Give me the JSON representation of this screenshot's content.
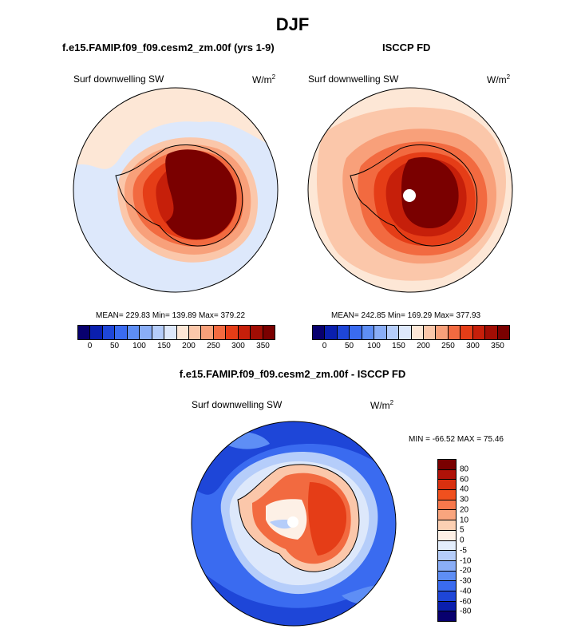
{
  "title": "DJF",
  "panels": [
    {
      "title": "f.e15.FAMIP.f09_f09.cesm2_zm.00f (yrs 1-9)",
      "variable": "Surf downwelling SW",
      "units": "W/m",
      "units_sup": "2",
      "stats": "MEAN= 229.83  Min= 139.89  Max= 379.22"
    },
    {
      "title": "ISCCP FD",
      "variable": "Surf downwelling SW",
      "units": "W/m",
      "units_sup": "2",
      "stats": "MEAN= 242.85  Min= 169.29  Max= 377.93"
    },
    {
      "title": "f.e15.FAMIP.f09_f09.cesm2_zm.00f - ISCCP FD",
      "variable": "Surf downwelling SW",
      "units": "W/m",
      "units_sup": "2",
      "stats": "MIN = -66.52 MAX =  75.46"
    }
  ],
  "colorbar_top": {
    "tick_labels": [
      "0",
      "50",
      "100",
      "150",
      "200",
      "250",
      "300",
      "350"
    ],
    "colors": [
      "#08006e",
      "#0a1fae",
      "#1e46d8",
      "#3a6bf0",
      "#5e8ef5",
      "#8aaef7",
      "#b5cdfa",
      "#dde8fb",
      "#fde7d6",
      "#fbc7aa",
      "#f8a07a",
      "#f26a40",
      "#e53d17",
      "#c61f0a",
      "#a10d04",
      "#7a0000"
    ]
  },
  "colorbar_diff": {
    "tick_labels": [
      "80",
      "60",
      "40",
      "30",
      "20",
      "10",
      "5",
      "0",
      "-5",
      "-10",
      "-20",
      "-30",
      "-40",
      "-60",
      "-80"
    ],
    "colors": [
      "#7a0000",
      "#b01208",
      "#d9300f",
      "#f0501e",
      "#f7784c",
      "#f9a57e",
      "#fcd0b3",
      "#fdf0e6",
      "#e4eefc",
      "#b5cdfa",
      "#8aaef7",
      "#5e8ef5",
      "#3a6bf0",
      "#1e46d8",
      "#0a1fae",
      "#08006e"
    ]
  },
  "chart_data": [
    {
      "type": "heatmap",
      "projection": "south-polar-stereographic",
      "title": "f.e15.FAMIP.f09_f09.cesm2_zm.00f (yrs 1-9)",
      "variable": "Surf downwelling SW",
      "units": "W/m2",
      "mean": 229.83,
      "min": 139.89,
      "max": 379.22,
      "colorbar_levels": [
        0,
        25,
        50,
        75,
        100,
        125,
        150,
        175,
        200,
        225,
        250,
        275,
        300,
        325,
        350
      ]
    },
    {
      "type": "heatmap",
      "projection": "south-polar-stereographic",
      "title": "ISCCP FD",
      "variable": "Surf downwelling SW",
      "units": "W/m2",
      "mean": 242.85,
      "min": 169.29,
      "max": 377.93,
      "colorbar_levels": [
        0,
        25,
        50,
        75,
        100,
        125,
        150,
        175,
        200,
        225,
        250,
        275,
        300,
        325,
        350
      ]
    },
    {
      "type": "heatmap",
      "projection": "south-polar-stereographic",
      "title": "f.e15.FAMIP.f09_f09.cesm2_zm.00f - ISCCP FD",
      "variable": "Surf downwelling SW",
      "units": "W/m2",
      "min": -66.52,
      "max": 75.46,
      "colorbar_levels": [
        -80,
        -60,
        -40,
        -30,
        -20,
        -10,
        -5,
        0,
        5,
        10,
        20,
        30,
        40,
        60,
        80
      ]
    }
  ]
}
